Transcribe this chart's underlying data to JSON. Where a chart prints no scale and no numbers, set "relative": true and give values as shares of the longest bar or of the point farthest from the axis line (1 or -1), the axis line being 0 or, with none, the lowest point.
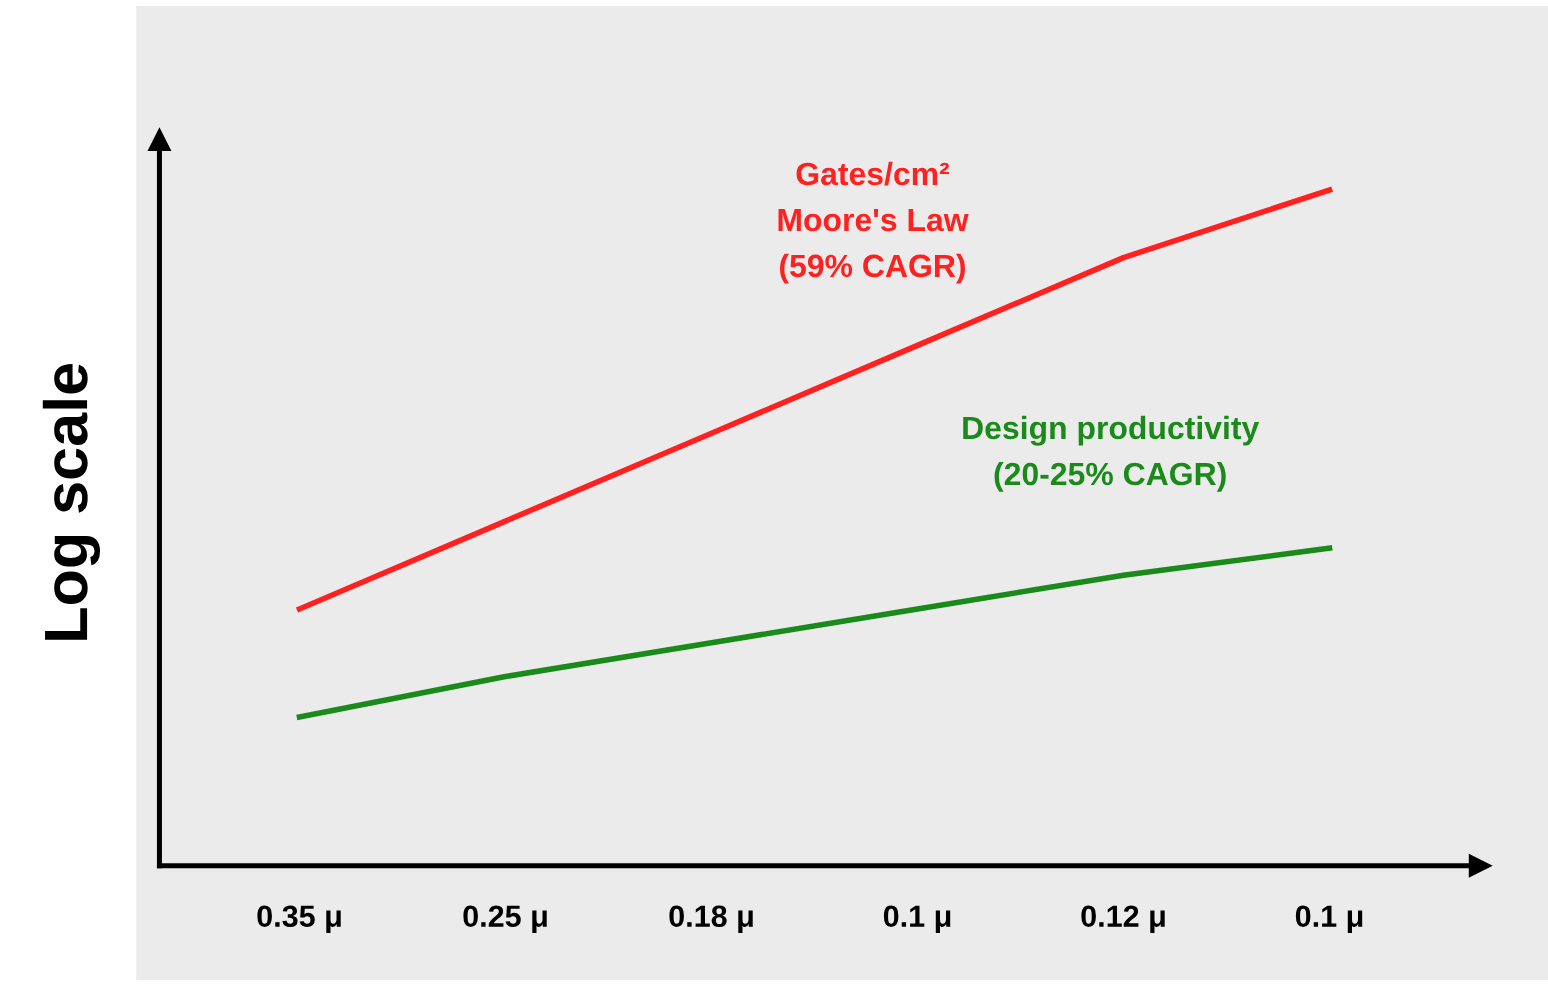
{
  "chart_data": {
    "type": "line",
    "relative": true,
    "ylabel": "Log scale",
    "categories": [
      "0.35 μ",
      "0.25 μ",
      "0.18 μ",
      "0.1 μ",
      "0.12 μ",
      "0.1 μ"
    ],
    "series": [
      {
        "name": "Gates/cm²\nMoore's Law\n(59% CAGR)",
        "color": "#ff2020",
        "values": [
          0.38,
          0.51,
          0.64,
          0.77,
          0.9,
          1.0
        ]
      },
      {
        "name": "Design productivity\n(20-25% CAGR)",
        "color": "#1a8a1a",
        "values": [
          0.22,
          0.28,
          0.33,
          0.38,
          0.43,
          0.47
        ]
      }
    ],
    "grid": false,
    "legend": false,
    "marker": "none",
    "line_style": "solid"
  }
}
